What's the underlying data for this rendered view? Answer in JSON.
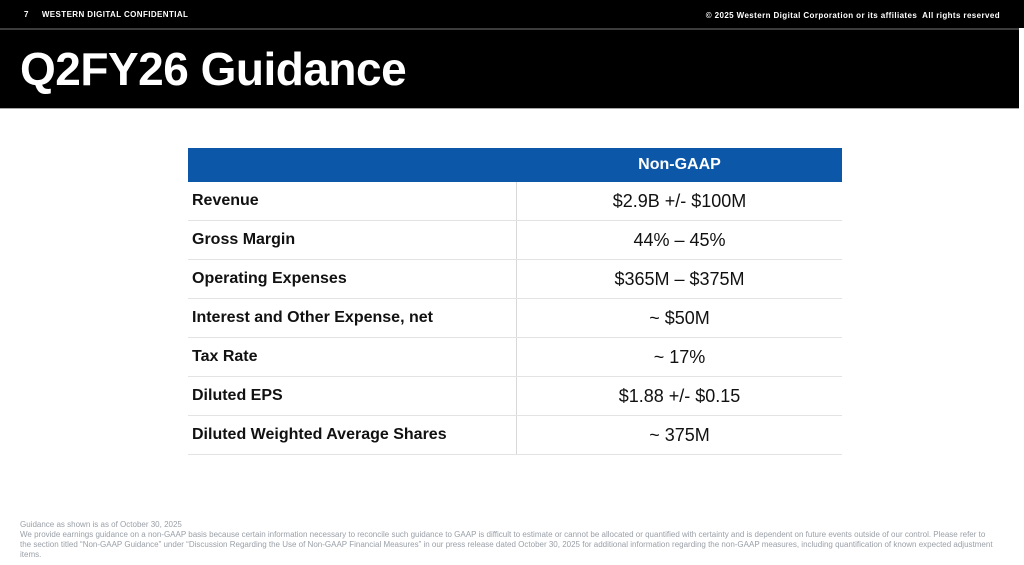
{
  "top_bar": {
    "page_number": "7",
    "confidential_label": "WESTERN DIGITAL CONFIDENTIAL",
    "copyright": "© 2025 Western Digital Corporation or its affiliates  All rights reserved"
  },
  "slide": {
    "title": "Q2FY26 Guidance"
  },
  "table": {
    "header": "Non-GAAP",
    "header_bg": "#0d57a8",
    "header_text_color": "#ffffff",
    "rows": [
      {
        "label": "Revenue",
        "value": "$2.9B +/- $100M"
      },
      {
        "label": "Gross Margin",
        "value": "44% – 45%"
      },
      {
        "label": "Operating Expenses",
        "value": "$365M – $375M"
      },
      {
        "label": "Interest and Other Expense, net",
        "value": "~ $50M"
      },
      {
        "label": "Tax Rate",
        "value": "~ 17%"
      },
      {
        "label": "Diluted EPS",
        "value": "$1.88 +/- $0.15"
      },
      {
        "label": "Diluted Weighted Average Shares",
        "value": "~ 375M"
      }
    ]
  },
  "footnotes": {
    "line1": "Guidance as shown is as of October 30, 2025",
    "body": "We provide earnings guidance on a non-GAAP basis because certain information necessary to reconcile such guidance to GAAP is difficult to estimate or cannot be allocated or quantified with certainty and is dependent on future events outside of our control. Please refer to the section titled “Non-GAAP Guidance” under “Discussion Regarding the Use of Non-GAAP Financial Measures” in our press release dated October 30, 2025 for additional information regarding the non-GAAP measures, including quantification of known expected adjustment items."
  }
}
